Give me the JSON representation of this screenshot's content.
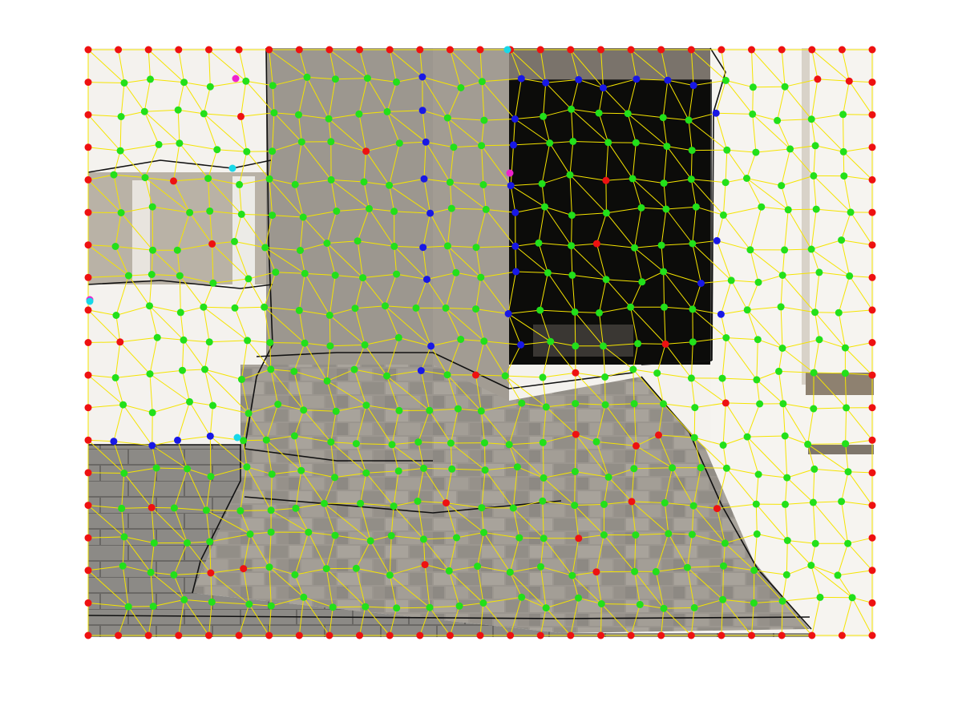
{
  "figure": {
    "description_free": true,
    "palette": {
      "background": "#ffffff",
      "photo_sky": "#f4f2ee",
      "stone_light": "#a9a49c",
      "stone_mid": "#8e8a84",
      "stone_dark": "#6f6c68",
      "doorway": "#0c0c0a",
      "ground": "#8a8884",
      "boundary_black": "#111111",
      "graph_edge": "#f5e400",
      "node_interior": "#22e01a",
      "node_border_red": "#ee1111",
      "node_border_blue": "#1818e6",
      "node_special_magenta": "#ee22cc",
      "node_special_cyan": "#18d8e8"
    },
    "grid": {
      "cols": 27,
      "rows": 19,
      "jitter": 0.18
    }
  }
}
